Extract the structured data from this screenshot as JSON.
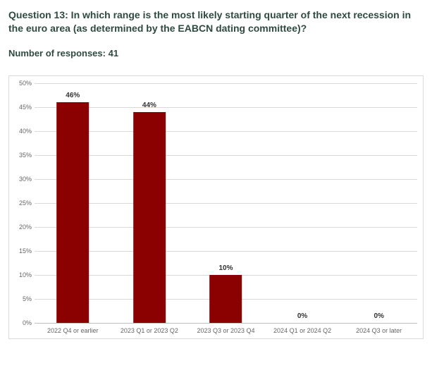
{
  "header": {
    "question": "Question 13: In which range is the most likely starting quarter of the next recession in the euro area (as determined by the EABCN dating committee)?",
    "responses_label": "Number of responses",
    "responses_value": 41
  },
  "chart": {
    "type": "bar",
    "categories": [
      "2022 Q4 or earlier",
      "2023 Q1 or 2023 Q2",
      "2023 Q3 or 2023 Q4",
      "2024 Q1 or 2024 Q2",
      "2024 Q3 or later"
    ],
    "values": [
      46,
      44,
      10,
      0,
      0
    ],
    "value_labels": [
      "46%",
      "44%",
      "10%",
      "0%",
      "0%"
    ],
    "bar_color": "#8b0000",
    "bar_width_pct": 42,
    "ylim": [
      0,
      50
    ],
    "ytick_step": 5,
    "ytick_labels": [
      "0%",
      "5%",
      "10%",
      "15%",
      "20%",
      "25%",
      "30%",
      "35%",
      "40%",
      "45%",
      "50%"
    ],
    "grid_color": "#d9d9d9",
    "baseline_color": "#bfbfbf",
    "tick_label_color": "#666666",
    "tick_label_fontsize": 9,
    "data_label_color": "#333333",
    "data_label_fontsize": 10,
    "data_label_weight": 700,
    "background_color": "#ffffff",
    "border_color": "#d9d9d9"
  }
}
